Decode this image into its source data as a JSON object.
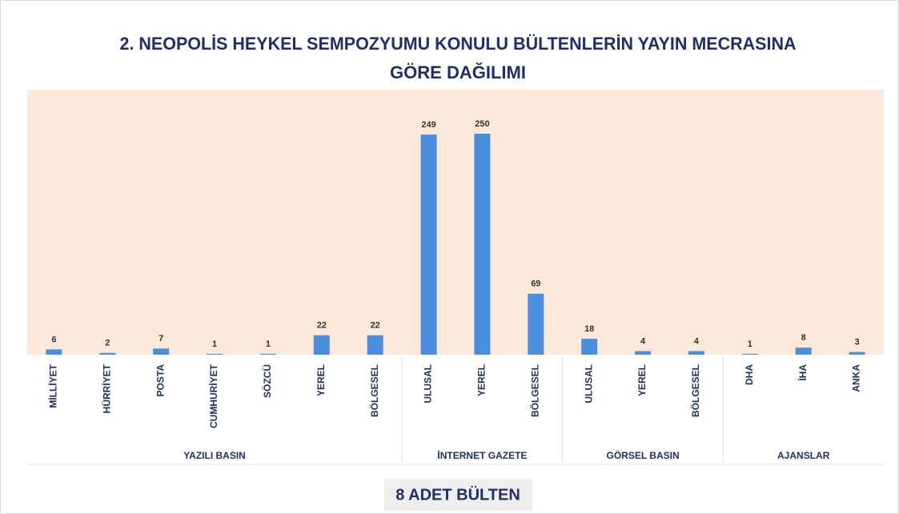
{
  "chart_data": {
    "type": "bar",
    "title": [
      "2. NEOPOLİS HEYKEL SEMPOZYUMU KONULU BÜLTENLERİN YAYIN MECRASINA",
      "GÖRE DAĞILIMI"
    ],
    "color": "#4a8fdc",
    "background": "#fde9d9",
    "groups": [
      {
        "name": "YAZILI BASIN",
        "categories": [
          "MİLLİYET",
          "HÜRRİYET",
          "POSTA",
          "CUMHURİYET",
          "SÖZCÜ",
          "YEREL",
          "BÖLGESEL"
        ],
        "values": [
          6,
          2,
          7,
          1,
          1,
          22,
          22
        ]
      },
      {
        "name": "İNTERNET GAZETE",
        "categories": [
          "ULUSAL",
          "YEREL",
          "BÖLGESEL"
        ],
        "values": [
          249,
          250,
          69
        ]
      },
      {
        "name": "GÖRSEL BASIN",
        "categories": [
          "ULUSAL",
          "YEREL",
          "BÖLGESEL"
        ],
        "values": [
          18,
          4,
          4
        ]
      },
      {
        "name": "AJANSLAR",
        "categories": [
          "DHA",
          "İHA",
          "ANKA"
        ],
        "values": [
          1,
          8,
          3
        ]
      }
    ],
    "footer": "8 ADET BÜLTEN"
  }
}
